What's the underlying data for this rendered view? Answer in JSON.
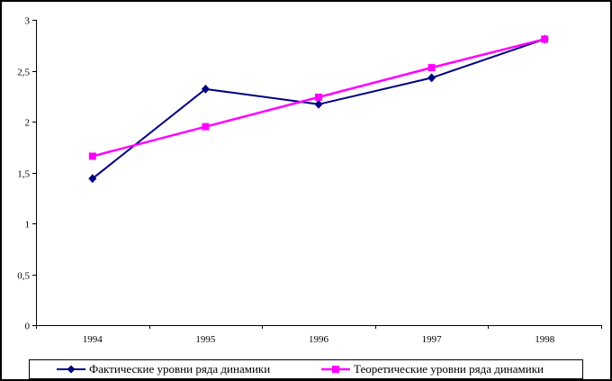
{
  "chart_data": {
    "type": "line",
    "title": "",
    "xlabel": "",
    "ylabel": "",
    "categories": [
      "1994",
      "1995",
      "1996",
      "1997",
      "1998"
    ],
    "series": [
      {
        "name": "Фактические уровни ряда динамики",
        "color": "#000080",
        "marker": "diamond",
        "line_width": 2,
        "values": [
          1.44,
          2.32,
          2.17,
          2.43,
          2.81
        ]
      },
      {
        "name": "Теоретические уровни ряда динамики",
        "color": "#FF00FF",
        "marker": "square",
        "line_width": 2.5,
        "values": [
          1.66,
          1.95,
          2.24,
          2.53,
          2.81
        ]
      }
    ],
    "ylim": [
      0,
      3
    ],
    "ytick_step": 0.5,
    "ytick_labels": [
      "0",
      "0,5",
      "1",
      "1,5",
      "2",
      "2,5",
      "3"
    ],
    "grid": false,
    "legend_position": "bottom",
    "plot_background": "#ffffff",
    "axis_color": "#000000"
  }
}
